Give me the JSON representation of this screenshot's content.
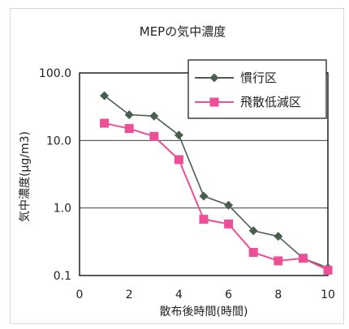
{
  "chart_data": {
    "type": "line",
    "title": "MEPの気中濃度",
    "xlabel": "散布後時間(時間)",
    "ylabel": "気中濃度(μg/m3)",
    "x_ticks": [
      "0",
      "2",
      "4",
      "6",
      "8",
      "10"
    ],
    "y_ticks": [
      "0.1",
      "1.0",
      "10.0",
      "100.0"
    ],
    "xlim": [
      0,
      10
    ],
    "ylim": [
      0.1,
      100
    ],
    "y_scale": "log",
    "grid": "horizontal",
    "legend_position": "top-right",
    "series": [
      {
        "name": "慣行区",
        "color": "#4a5e4e",
        "marker": "diamond",
        "x": [
          1,
          2,
          3,
          4,
          5,
          6,
          7,
          8,
          9,
          10
        ],
        "y": [
          46,
          24,
          23,
          12,
          1.5,
          1.1,
          0.46,
          0.38,
          0.18,
          0.13
        ]
      },
      {
        "name": "飛散低減区",
        "color": "#ec4f95",
        "marker": "square",
        "x": [
          1,
          2,
          3,
          4,
          5,
          6,
          7,
          8,
          9,
          10
        ],
        "y": [
          18,
          15,
          11.5,
          5.2,
          0.68,
          0.58,
          0.22,
          0.165,
          0.18,
          0.12
        ]
      }
    ]
  }
}
